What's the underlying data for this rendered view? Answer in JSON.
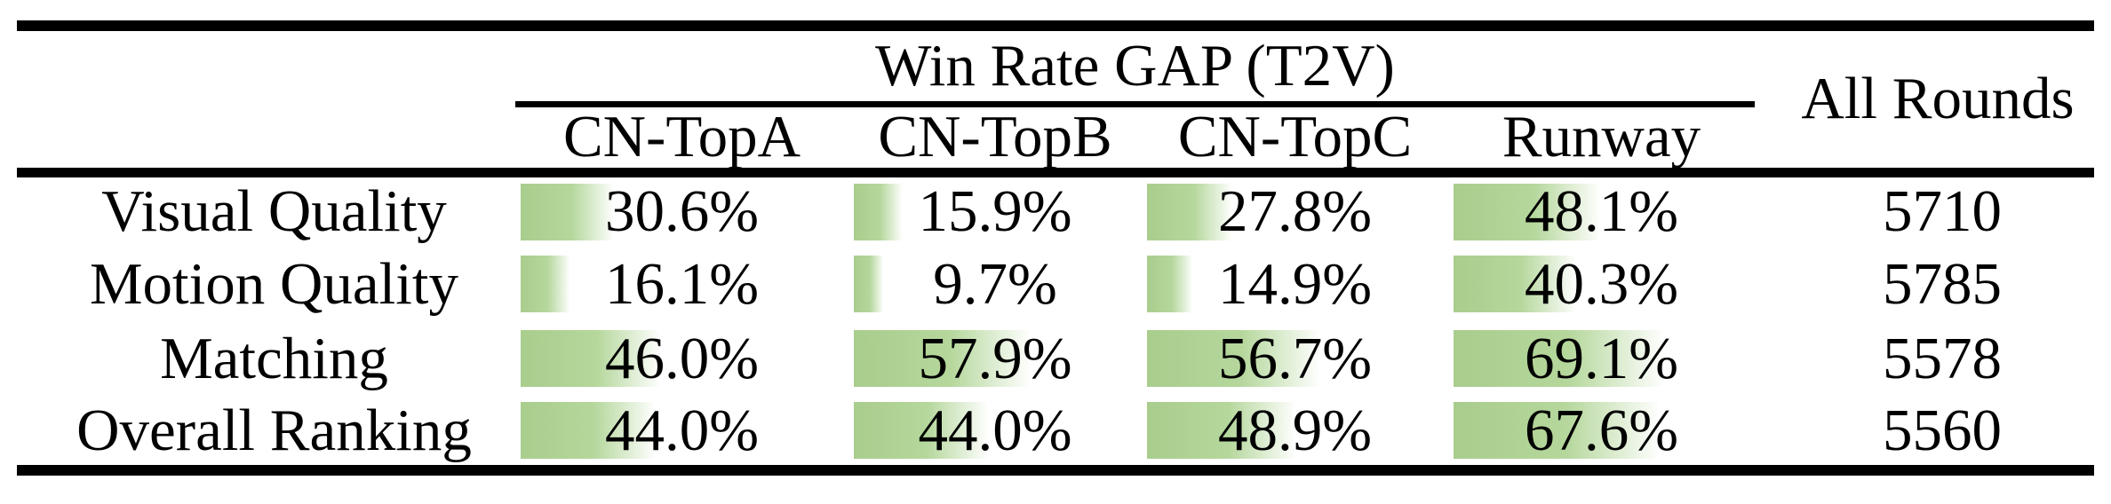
{
  "table": {
    "group_header": "Win Rate GAP (T2V)",
    "all_rounds_header": "All Rounds",
    "columns": [
      "CN-TopA",
      "CN-TopB",
      "CN-TopC",
      "Runway"
    ],
    "rows": [
      {
        "label": "Visual Quality",
        "cells": [
          {
            "text": "30.6%",
            "bar": 30.6
          },
          {
            "text": "15.9%",
            "bar": 15.9
          },
          {
            "text": "27.8%",
            "bar": 27.8
          },
          {
            "text": "48.1%",
            "bar": 48.1
          }
        ],
        "all_rounds": "5710"
      },
      {
        "label": "Motion Quality",
        "cells": [
          {
            "text": "16.1%",
            "bar": 16.1
          },
          {
            "text": "9.7%",
            "bar": 9.7
          },
          {
            "text": "14.9%",
            "bar": 14.9
          },
          {
            "text": "40.3%",
            "bar": 40.3
          }
        ],
        "all_rounds": "5785"
      },
      {
        "label": "Matching",
        "cells": [
          {
            "text": "46.0%",
            "bar": 46.0
          },
          {
            "text": "57.9%",
            "bar": 57.9
          },
          {
            "text": "56.7%",
            "bar": 56.7
          },
          {
            "text": "69.1%",
            "bar": 69.1
          }
        ],
        "all_rounds": "5578"
      },
      {
        "label": "Overall Ranking",
        "cells": [
          {
            "text": "44.0%",
            "bar": 44.0
          },
          {
            "text": "44.0%",
            "bar": 44.0
          },
          {
            "text": "48.9%",
            "bar": 48.9
          },
          {
            "text": "67.6%",
            "bar": 67.6
          }
        ],
        "all_rounds": "5560"
      }
    ]
  },
  "colors": {
    "bar_green_start": "#a9cd8d",
    "bar_green_mid": "#b5d79c",
    "bar_fade_end": "#fdfefc",
    "rule_black": "#000000"
  },
  "chart_data": {
    "type": "table",
    "title": "Win Rate GAP (T2V)",
    "columns": [
      "CN-TopA",
      "CN-TopB",
      "CN-TopC",
      "Runway",
      "All Rounds"
    ],
    "row_labels": [
      "Visual Quality",
      "Motion Quality",
      "Matching",
      "Overall Ranking"
    ],
    "win_rate_gap_percent": [
      [
        30.6,
        15.9,
        27.8,
        48.1
      ],
      [
        16.1,
        9.7,
        14.9,
        40.3
      ],
      [
        46.0,
        57.9,
        56.7,
        69.1
      ],
      [
        44.0,
        44.0,
        48.9,
        67.6
      ]
    ],
    "all_rounds": [
      5710,
      5785,
      5578,
      5560
    ],
    "bar_scale": "cell-embedded data bars, width proportional to percent (100% = full cell width)"
  }
}
